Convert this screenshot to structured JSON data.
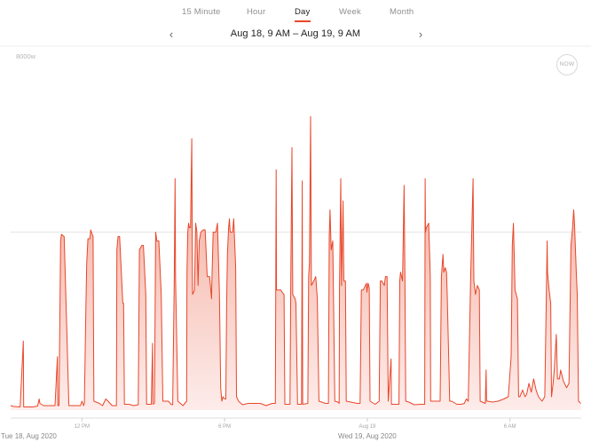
{
  "tabs": [
    {
      "label": "15 Minute",
      "active": false
    },
    {
      "label": "Hour",
      "active": false
    },
    {
      "label": "Day",
      "active": true
    },
    {
      "label": "Week",
      "active": false
    },
    {
      "label": "Month",
      "active": false
    }
  ],
  "nav": {
    "prev_icon": "chevron-left-icon",
    "next_icon": "chevron-right-icon",
    "range_label": "Aug 18, 9 AM – Aug 19, 9 AM"
  },
  "now_label": "NOW",
  "colors": {
    "line": "#e8462a",
    "fill_top": "#f2a08e",
    "fill_bottom": "#fdecea",
    "accent": "#e8462a"
  },
  "chart_data": {
    "type": "area",
    "title": "",
    "xlabel": "",
    "ylabel": "",
    "ylim": [
      0,
      8000
    ],
    "xlim": [
      "2020-08-18 09:00",
      "2020-08-19 09:00"
    ],
    "ylabel_top": "8000w",
    "gridlines_y": [
      4000
    ],
    "x_ticks": [
      {
        "time": "12:00",
        "label": "12 PM"
      },
      {
        "time": "18:00",
        "label": "6 PM"
      },
      {
        "time": "00:00",
        "label": "Aug 19"
      },
      {
        "time": "06:00",
        "label": "6 AM"
      }
    ],
    "date_labels": [
      {
        "time": "09:00",
        "label": "Tue 18, Aug 2020"
      },
      {
        "time": "00:00",
        "label": "Wed 19, Aug 2020"
      }
    ],
    "series": [
      {
        "points": [
          [
            "09:00",
            100
          ],
          [
            "09:08",
            80
          ],
          [
            "09:24",
            70
          ],
          [
            "09:32",
            1550
          ],
          [
            "09:33",
            70
          ],
          [
            "09:56",
            70
          ],
          [
            "10:08",
            90
          ],
          [
            "10:12",
            250
          ],
          [
            "10:14",
            150
          ],
          [
            "10:23",
            100
          ],
          [
            "10:52",
            100
          ],
          [
            "10:58",
            1200
          ],
          [
            "10:59",
            100
          ],
          [
            "11:02",
            100
          ],
          [
            "11:06",
            3800
          ],
          [
            "11:08",
            3950
          ],
          [
            "11:15",
            3900
          ],
          [
            "11:21",
            2000
          ],
          [
            "11:27",
            100
          ],
          [
            "11:56",
            100
          ],
          [
            "12:00",
            200
          ],
          [
            "12:04",
            100
          ],
          [
            "12:06",
            150
          ],
          [
            "12:10",
            2300
          ],
          [
            "12:12",
            3300
          ],
          [
            "12:15",
            3850
          ],
          [
            "12:20",
            3850
          ],
          [
            "12:22",
            4050
          ],
          [
            "12:28",
            3900
          ],
          [
            "12:30",
            200
          ],
          [
            "12:44",
            150
          ],
          [
            "12:52",
            100
          ],
          [
            "13:00",
            250
          ],
          [
            "13:06",
            200
          ],
          [
            "13:16",
            100
          ],
          [
            "13:27",
            100
          ],
          [
            "13:28",
            3600
          ],
          [
            "13:31",
            3900
          ],
          [
            "13:35",
            3900
          ],
          [
            "13:43",
            2400
          ],
          [
            "13:45",
            2400
          ],
          [
            "13:47",
            130
          ],
          [
            "13:59",
            130
          ],
          [
            "14:10",
            100
          ],
          [
            "14:22",
            120
          ],
          [
            "14:25",
            3600
          ],
          [
            "14:31",
            3700
          ],
          [
            "14:35",
            3700
          ],
          [
            "14:41",
            2600
          ],
          [
            "14:43",
            130
          ],
          [
            "14:55",
            130
          ],
          [
            "14:58",
            1500
          ],
          [
            "14:59",
            130
          ],
          [
            "15:03",
            150
          ],
          [
            "15:06",
            4000
          ],
          [
            "15:09",
            3800
          ],
          [
            "15:14",
            3800
          ],
          [
            "15:20",
            2600
          ],
          [
            "15:24",
            200
          ],
          [
            "15:38",
            200
          ],
          [
            "15:45",
            130
          ],
          [
            "15:49",
            120
          ],
          [
            "15:53",
            3000
          ],
          [
            "15:55",
            5200
          ],
          [
            "15:56",
            3000
          ],
          [
            "16:02",
            200
          ],
          [
            "16:15",
            100
          ],
          [
            "16:24",
            200
          ],
          [
            "16:25",
            3100
          ],
          [
            "16:27",
            4000
          ],
          [
            "16:29",
            4200
          ],
          [
            "16:31",
            4100
          ],
          [
            "16:34",
            4100
          ],
          [
            "16:37",
            6100
          ],
          [
            "16:39",
            2600
          ],
          [
            "16:44",
            2700
          ],
          [
            "16:47",
            4200
          ],
          [
            "16:50",
            4000
          ],
          [
            "16:53",
            2800
          ],
          [
            "16:56",
            3800
          ],
          [
            "17:00",
            4000
          ],
          [
            "17:06",
            4050
          ],
          [
            "17:11",
            4050
          ],
          [
            "17:16",
            3000
          ],
          [
            "17:22",
            3000
          ],
          [
            "17:27",
            2500
          ],
          [
            "17:28",
            2900
          ],
          [
            "17:31",
            4000
          ],
          [
            "17:38",
            4000
          ],
          [
            "17:42",
            4200
          ],
          [
            "17:47",
            2600
          ],
          [
            "17:50",
            500
          ],
          [
            "17:53",
            200
          ],
          [
            "17:56",
            300
          ],
          [
            "18:00",
            250
          ],
          [
            "18:03",
            250
          ],
          [
            "18:05",
            2400
          ],
          [
            "18:07",
            3500
          ],
          [
            "18:10",
            4100
          ],
          [
            "18:12",
            4300
          ],
          [
            "18:14",
            4000
          ],
          [
            "18:20",
            4000
          ],
          [
            "18:23",
            4300
          ],
          [
            "18:28",
            3200
          ],
          [
            "18:30",
            300
          ],
          [
            "18:35",
            200
          ],
          [
            "18:45",
            120
          ],
          [
            "19:00",
            150
          ],
          [
            "19:30",
            150
          ],
          [
            "19:45",
            100
          ],
          [
            "20:00",
            150
          ],
          [
            "20:08",
            150
          ],
          [
            "20:10",
            5400
          ],
          [
            "20:11",
            2700
          ],
          [
            "20:18",
            2700
          ],
          [
            "20:22",
            2700
          ],
          [
            "20:25",
            2650
          ],
          [
            "20:30",
            2600
          ],
          [
            "20:32",
            130
          ],
          [
            "20:45",
            130
          ],
          [
            "20:47",
            3000
          ],
          [
            "20:50",
            5900
          ],
          [
            "20:52",
            2600
          ],
          [
            "20:58",
            2500
          ],
          [
            "21:00",
            2400
          ],
          [
            "21:04",
            130
          ],
          [
            "21:14",
            130
          ],
          [
            "21:16",
            5150
          ],
          [
            "21:17",
            130
          ],
          [
            "21:30",
            150
          ],
          [
            "21:32",
            3000
          ],
          [
            "21:34",
            3300
          ],
          [
            "21:37",
            6600
          ],
          [
            "21:39",
            2800
          ],
          [
            "21:45",
            2900
          ],
          [
            "21:50",
            3000
          ],
          [
            "21:54",
            2500
          ],
          [
            "21:58",
            200
          ],
          [
            "22:15",
            150
          ],
          [
            "22:22",
            150
          ],
          [
            "22:24",
            3900
          ],
          [
            "22:26",
            4500
          ],
          [
            "22:29",
            3600
          ],
          [
            "22:33",
            3800
          ],
          [
            "22:38",
            200
          ],
          [
            "22:46",
            180
          ],
          [
            "22:49",
            150
          ],
          [
            "22:50",
            2800
          ],
          [
            "22:53",
            5200
          ],
          [
            "22:55",
            2800
          ],
          [
            "22:59",
            4700
          ],
          [
            "23:01",
            2900
          ],
          [
            "23:05",
            2900
          ],
          [
            "23:07",
            200
          ],
          [
            "23:35",
            150
          ],
          [
            "23:42",
            150
          ],
          [
            "23:45",
            2700
          ],
          [
            "23:50",
            2700
          ],
          [
            "23:58",
            2850
          ],
          [
            "23:59",
            2650
          ],
          [
            "00:02",
            2850
          ],
          [
            "00:05",
            2750
          ],
          [
            "00:07",
            200
          ],
          [
            "00:20",
            130
          ],
          [
            "00:30",
            200
          ],
          [
            "00:33",
            2900
          ],
          [
            "00:37",
            2900
          ],
          [
            "00:43",
            2800
          ],
          [
            "00:46",
            3000
          ],
          [
            "00:50",
            3000
          ],
          [
            "00:53",
            200
          ],
          [
            "01:00",
            1150
          ],
          [
            "01:01",
            130
          ],
          [
            "01:20",
            130
          ],
          [
            "01:22",
            2900
          ],
          [
            "01:24",
            3100
          ],
          [
            "01:29",
            2900
          ],
          [
            "01:33",
            5050
          ],
          [
            "01:35",
            3000
          ],
          [
            "01:37",
            200
          ],
          [
            "01:45",
            180
          ],
          [
            "01:58",
            120
          ],
          [
            "02:15",
            130
          ],
          [
            "02:25",
            130
          ],
          [
            "02:26",
            5200
          ],
          [
            "02:27",
            4000
          ],
          [
            "02:29",
            4100
          ],
          [
            "02:35",
            4200
          ],
          [
            "02:39",
            3000
          ],
          [
            "02:40",
            200
          ],
          [
            "02:52",
            200
          ],
          [
            "03:00",
            200
          ],
          [
            "03:04",
            200
          ],
          [
            "03:07",
            3000
          ],
          [
            "03:11",
            3500
          ],
          [
            "03:13",
            3100
          ],
          [
            "03:17",
            3200
          ],
          [
            "03:20",
            3100
          ],
          [
            "03:22",
            2500
          ],
          [
            "03:28",
            200
          ],
          [
            "03:33",
            200
          ],
          [
            "03:46",
            130
          ],
          [
            "03:57",
            130
          ],
          [
            "04:05",
            150
          ],
          [
            "04:10",
            250
          ],
          [
            "04:15",
            200
          ],
          [
            "04:21",
            3000
          ],
          [
            "04:27",
            5200
          ],
          [
            "04:29",
            2900
          ],
          [
            "04:33",
            2600
          ],
          [
            "04:38",
            2800
          ],
          [
            "04:43",
            2700
          ],
          [
            "04:45",
            200
          ],
          [
            "04:58",
            150
          ],
          [
            "05:00",
            900
          ],
          [
            "05:01",
            200
          ],
          [
            "05:03",
            200
          ],
          [
            "05:16",
            180
          ],
          [
            "05:30",
            200
          ],
          [
            "05:45",
            250
          ],
          [
            "05:56",
            300
          ],
          [
            "06:03",
            1200
          ],
          [
            "06:06",
            3700
          ],
          [
            "06:09",
            4200
          ],
          [
            "06:13",
            2700
          ],
          [
            "06:19",
            2500
          ],
          [
            "06:22",
            300
          ],
          [
            "06:25",
            300
          ],
          [
            "06:32",
            450
          ],
          [
            "06:38",
            300
          ],
          [
            "06:42",
            350
          ],
          [
            "06:48",
            600
          ],
          [
            "06:54",
            400
          ],
          [
            "07:00",
            700
          ],
          [
            "07:06",
            450
          ],
          [
            "07:12",
            300
          ],
          [
            "07:21",
            200
          ],
          [
            "07:28",
            300
          ],
          [
            "07:34",
            3800
          ],
          [
            "07:35",
            3100
          ],
          [
            "07:39",
            2700
          ],
          [
            "07:43",
            2400
          ],
          [
            "07:45",
            300
          ],
          [
            "07:49",
            600
          ],
          [
            "07:52",
            900
          ],
          [
            "07:57",
            1700
          ],
          [
            "08:00",
            700
          ],
          [
            "08:05",
            700
          ],
          [
            "08:08",
            900
          ],
          [
            "08:15",
            650
          ],
          [
            "08:23",
            500
          ],
          [
            "08:29",
            600
          ],
          [
            "08:34",
            3700
          ],
          [
            "08:38",
            4100
          ],
          [
            "08:41",
            4500
          ],
          [
            "08:43",
            4200
          ],
          [
            "08:48",
            3000
          ],
          [
            "08:50",
            2600
          ],
          [
            "08:53",
            200
          ],
          [
            "08:59",
            150
          ]
        ]
      }
    ]
  }
}
